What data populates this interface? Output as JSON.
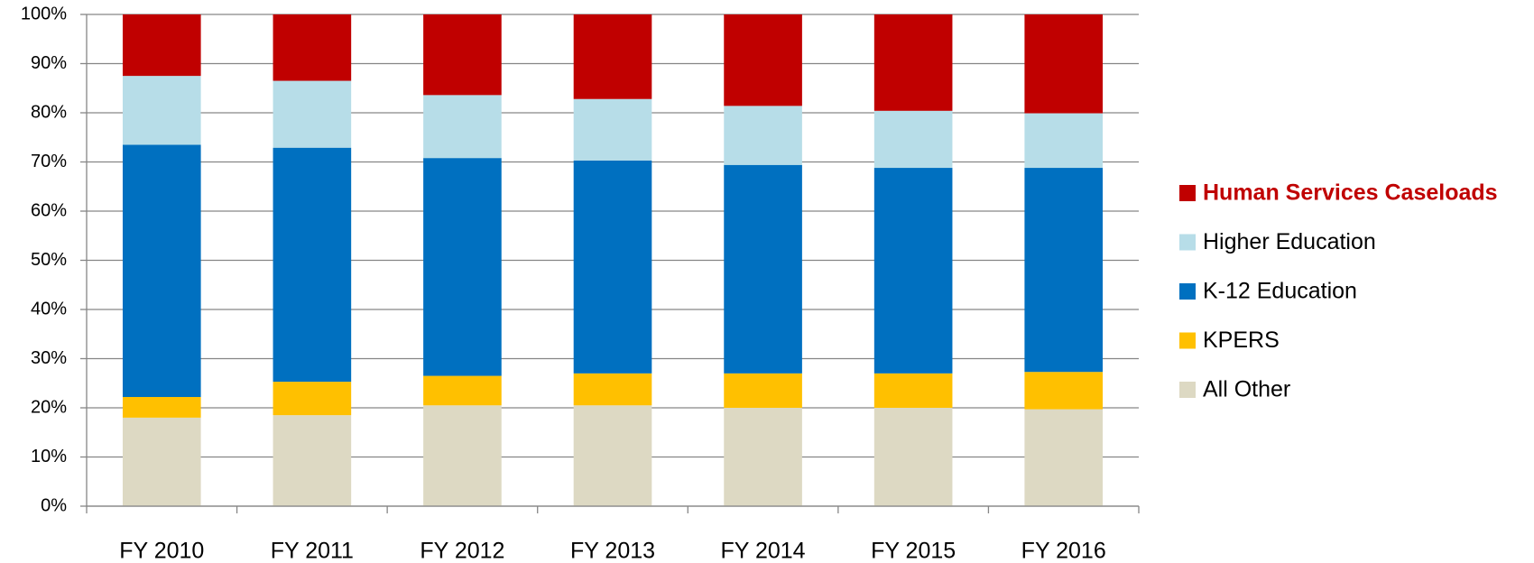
{
  "chart_data": {
    "type": "stacked_bar",
    "categories": [
      "FY 2010",
      "FY 2011",
      "FY 2012",
      "FY 2013",
      "FY 2014",
      "FY 2015",
      "FY 2016"
    ],
    "series": [
      {
        "name": "All Other",
        "color": "#ddd9c3",
        "values": [
          18,
          18.5,
          20.5,
          20.5,
          20,
          20,
          19.7
        ]
      },
      {
        "name": "KPERS",
        "color": "#ffc000",
        "values": [
          4.2,
          6.8,
          6,
          6.5,
          7,
          7,
          7.6
        ]
      },
      {
        "name": "K-12 Education",
        "color": "#0070c0",
        "values": [
          51.3,
          47.6,
          44.3,
          43.3,
          42.4,
          41.8,
          41.5
        ]
      },
      {
        "name": "Higher Education",
        "color": "#b7dde8",
        "values": [
          14,
          13.6,
          12.8,
          12.5,
          12,
          11.6,
          11.1
        ]
      },
      {
        "name": "Human Services Caseloads",
        "color": "#c00000",
        "values": [
          12.5,
          13.5,
          16.4,
          17.2,
          18.6,
          19.6,
          20.1
        ],
        "legend_emphasis": true
      }
    ],
    "ylim": [
      0,
      100
    ],
    "yticks": [
      {
        "value": 0,
        "label": "0%"
      },
      {
        "value": 10,
        "label": "10%"
      },
      {
        "value": 20,
        "label": "20%"
      },
      {
        "value": 30,
        "label": "30%"
      },
      {
        "value": 40,
        "label": "40%"
      },
      {
        "value": 50,
        "label": "50%"
      },
      {
        "value": 60,
        "label": "60%"
      },
      {
        "value": 70,
        "label": "70%"
      },
      {
        "value": 80,
        "label": "80%"
      },
      {
        "value": 90,
        "label": "90%"
      },
      {
        "value": 100,
        "label": "100%"
      }
    ],
    "grid": true,
    "legend": "right"
  }
}
